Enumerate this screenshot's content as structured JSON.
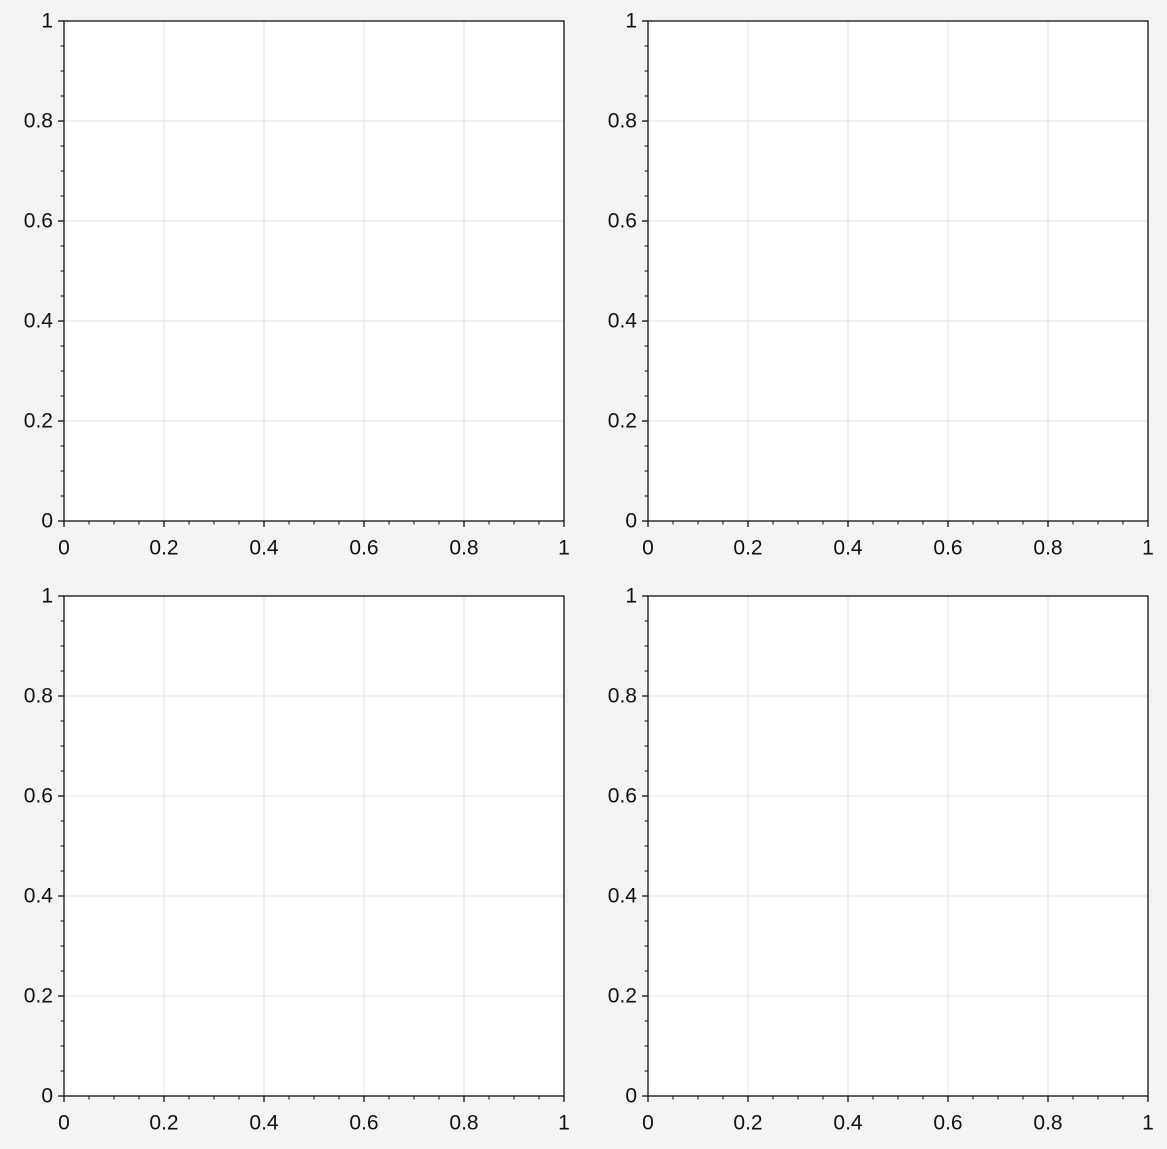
{
  "chart_data": [
    {
      "type": "line",
      "xlim": [
        0,
        1
      ],
      "ylim": [
        0,
        1
      ],
      "xticks": [
        0,
        0.2,
        0.4,
        0.6,
        0.8,
        1
      ],
      "yticks": [
        0,
        0.2,
        0.4,
        0.6,
        0.8,
        1
      ],
      "xminorticks": [
        0.05,
        0.1,
        0.15,
        0.25,
        0.3,
        0.35,
        0.45,
        0.5,
        0.55,
        0.65,
        0.7,
        0.75,
        0.85,
        0.9,
        0.95
      ],
      "yminorticks": [
        0.05,
        0.1,
        0.15,
        0.25,
        0.3,
        0.35,
        0.45,
        0.5,
        0.55,
        0.65,
        0.7,
        0.75,
        0.85,
        0.9,
        0.95
      ],
      "grid": true
    },
    {
      "type": "line",
      "xlim": [
        0,
        1
      ],
      "ylim": [
        0,
        1
      ],
      "xticks": [
        0,
        0.2,
        0.4,
        0.6,
        0.8,
        1
      ],
      "yticks": [
        0,
        0.2,
        0.4,
        0.6,
        0.8,
        1
      ],
      "xminorticks": [
        0.05,
        0.1,
        0.15,
        0.25,
        0.3,
        0.35,
        0.45,
        0.5,
        0.55,
        0.65,
        0.7,
        0.75,
        0.85,
        0.9,
        0.95
      ],
      "yminorticks": [
        0.05,
        0.1,
        0.15,
        0.25,
        0.3,
        0.35,
        0.45,
        0.5,
        0.55,
        0.65,
        0.7,
        0.75,
        0.85,
        0.9,
        0.95
      ],
      "grid": true
    },
    {
      "type": "line",
      "xlim": [
        0,
        1
      ],
      "ylim": [
        0,
        1
      ],
      "xticks": [
        0,
        0.2,
        0.4,
        0.6,
        0.8,
        1
      ],
      "yticks": [
        0,
        0.2,
        0.4,
        0.6,
        0.8,
        1
      ],
      "xminorticks": [
        0.05,
        0.1,
        0.15,
        0.25,
        0.3,
        0.35,
        0.45,
        0.5,
        0.55,
        0.65,
        0.7,
        0.75,
        0.85,
        0.9,
        0.95
      ],
      "yminorticks": [
        0.05,
        0.1,
        0.15,
        0.25,
        0.3,
        0.35,
        0.45,
        0.5,
        0.55,
        0.65,
        0.7,
        0.75,
        0.85,
        0.9,
        0.95
      ],
      "grid": true
    },
    {
      "type": "line",
      "xlim": [
        0,
        1
      ],
      "ylim": [
        0,
        1
      ],
      "xticks": [
        0,
        0.2,
        0.4,
        0.6,
        0.8,
        1
      ],
      "yticks": [
        0,
        0.2,
        0.4,
        0.6,
        0.8,
        1
      ],
      "xminorticks": [
        0.05,
        0.1,
        0.15,
        0.25,
        0.3,
        0.35,
        0.45,
        0.5,
        0.55,
        0.65,
        0.7,
        0.75,
        0.85,
        0.9,
        0.95
      ],
      "yminorticks": [
        0.05,
        0.1,
        0.15,
        0.25,
        0.3,
        0.35,
        0.45,
        0.5,
        0.55,
        0.65,
        0.7,
        0.75,
        0.85,
        0.9,
        0.95
      ],
      "grid": true
    }
  ]
}
